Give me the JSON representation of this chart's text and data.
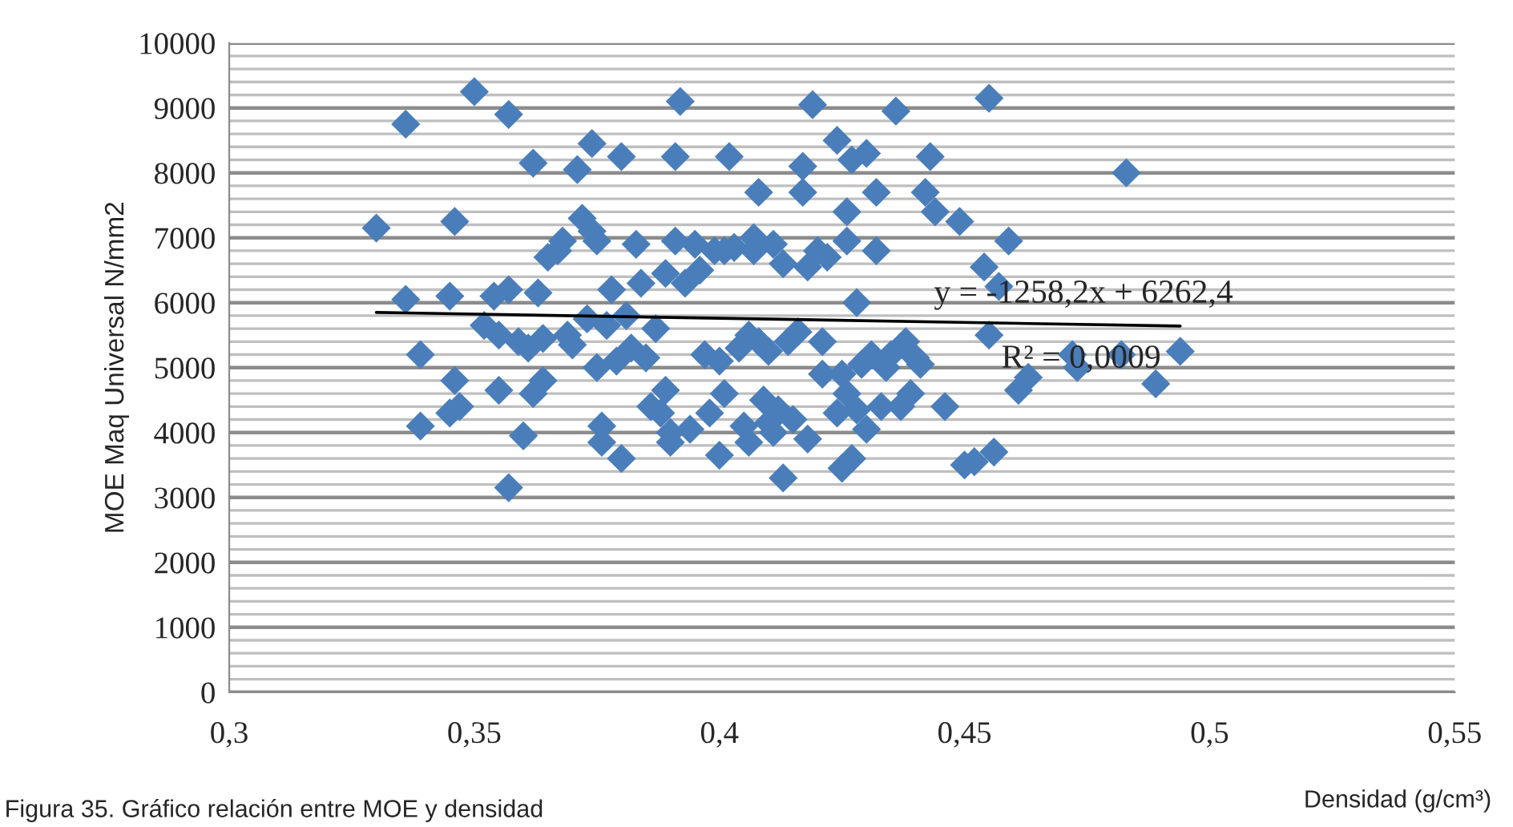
{
  "chart_data": {
    "type": "scatter",
    "xlabel": "Densidad (g/cm³)",
    "ylabel": "MOE Maq Universal N/mm2",
    "xlim": [
      0.3,
      0.55
    ],
    "xticks": [
      {
        "value": 0.3,
        "label": "0,3"
      },
      {
        "value": 0.35,
        "label": "0,35"
      },
      {
        "value": 0.4,
        "label": "0,4"
      },
      {
        "value": 0.45,
        "label": "0,45"
      },
      {
        "value": 0.5,
        "label": "0,5"
      },
      {
        "value": 0.55,
        "label": "0,55"
      }
    ],
    "ylim": [
      0,
      10000
    ],
    "yticks": [
      0,
      1000,
      2000,
      3000,
      4000,
      5000,
      6000,
      7000,
      8000,
      9000,
      10000
    ],
    "grid": "y",
    "legend": false,
    "series": [
      {
        "marker": "diamond",
        "color": "#4a7ebb",
        "x": [
          0.33,
          0.336,
          0.336,
          0.339,
          0.339,
          0.345,
          0.346,
          0.346,
          0.345,
          0.347,
          0.35,
          0.352,
          0.354,
          0.355,
          0.355,
          0.357,
          0.357,
          0.357,
          0.359,
          0.36,
          0.361,
          0.362,
          0.362,
          0.363,
          0.364,
          0.364,
          0.365,
          0.367,
          0.368,
          0.369,
          0.37,
          0.371,
          0.372,
          0.373,
          0.374,
          0.374,
          0.375,
          0.375,
          0.376,
          0.376,
          0.377,
          0.378,
          0.379,
          0.38,
          0.38,
          0.381,
          0.382,
          0.383,
          0.384,
          0.385,
          0.386,
          0.387,
          0.388,
          0.389,
          0.389,
          0.39,
          0.39,
          0.391,
          0.391,
          0.392,
          0.393,
          0.394,
          0.395,
          0.396,
          0.397,
          0.398,
          0.399,
          0.4,
          0.4,
          0.401,
          0.401,
          0.402,
          0.403,
          0.404,
          0.405,
          0.406,
          0.406,
          0.407,
          0.407,
          0.408,
          0.408,
          0.409,
          0.41,
          0.41,
          0.411,
          0.411,
          0.412,
          0.413,
          0.413,
          0.414,
          0.415,
          0.416,
          0.417,
          0.417,
          0.418,
          0.418,
          0.419,
          0.42,
          0.421,
          0.421,
          0.422,
          0.424,
          0.424,
          0.425,
          0.425,
          0.426,
          0.426,
          0.426,
          0.427,
          0.427,
          0.428,
          0.428,
          0.429,
          0.43,
          0.43,
          0.431,
          0.432,
          0.432,
          0.433,
          0.434,
          0.435,
          0.436,
          0.437,
          0.438,
          0.439,
          0.44,
          0.441,
          0.442,
          0.443,
          0.444,
          0.446,
          0.449,
          0.45,
          0.452,
          0.454,
          0.455,
          0.455,
          0.456,
          0.457,
          0.459,
          0.461,
          0.463,
          0.472,
          0.473,
          0.482,
          0.483,
          0.489,
          0.494
        ],
        "values": [
          7150,
          6050,
          8750,
          5200,
          4100,
          6100,
          7250,
          4800,
          4300,
          4400,
          9250,
          5650,
          6100,
          4650,
          5500,
          8900,
          6200,
          3150,
          5400,
          3950,
          5300,
          8150,
          4600,
          6150,
          5450,
          4800,
          6700,
          6800,
          6950,
          5500,
          5350,
          8050,
          7300,
          5750,
          7100,
          8450,
          6950,
          5000,
          3850,
          4100,
          5650,
          6200,
          5100,
          8250,
          3600,
          5800,
          5300,
          6900,
          6300,
          5150,
          4400,
          5600,
          4300,
          6450,
          4650,
          4000,
          3850,
          6950,
          8250,
          9100,
          6300,
          4050,
          6900,
          6500,
          5200,
          4300,
          6800,
          5100,
          3650,
          6800,
          4600,
          8250,
          6850,
          5300,
          4100,
          5500,
          3850,
          7000,
          6800,
          7700,
          5400,
          4500,
          4150,
          5250,
          6900,
          4000,
          4350,
          3300,
          6600,
          5400,
          4200,
          5550,
          7700,
          8100,
          6550,
          3900,
          9050,
          6800,
          5400,
          4900,
          6700,
          8500,
          4300,
          3450,
          4900,
          7400,
          6950,
          4600,
          8200,
          3600,
          4350,
          6000,
          5050,
          8300,
          4050,
          5200,
          7700,
          6800,
          4400,
          5000,
          5200,
          8950,
          4400,
          5400,
          4600,
          5150,
          5050,
          7700,
          8250,
          7400,
          4400,
          7250,
          3500,
          3550,
          6550,
          9150,
          5500,
          3700,
          6250,
          6950,
          4650,
          4850,
          5200,
          5000,
          5200,
          8000,
          4750,
          5250
        ]
      },
      {
        "type": "line",
        "marker": "none",
        "color": "#000000",
        "x": [
          0.33,
          0.494
        ],
        "values": [
          5850,
          5640
        ]
      }
    ],
    "annotations": [
      "y = -1258,2x + 6262,4",
      "R² = 0,0009",
      "Figura 35. Gráfico relación entre MOE y densidad"
    ]
  }
}
